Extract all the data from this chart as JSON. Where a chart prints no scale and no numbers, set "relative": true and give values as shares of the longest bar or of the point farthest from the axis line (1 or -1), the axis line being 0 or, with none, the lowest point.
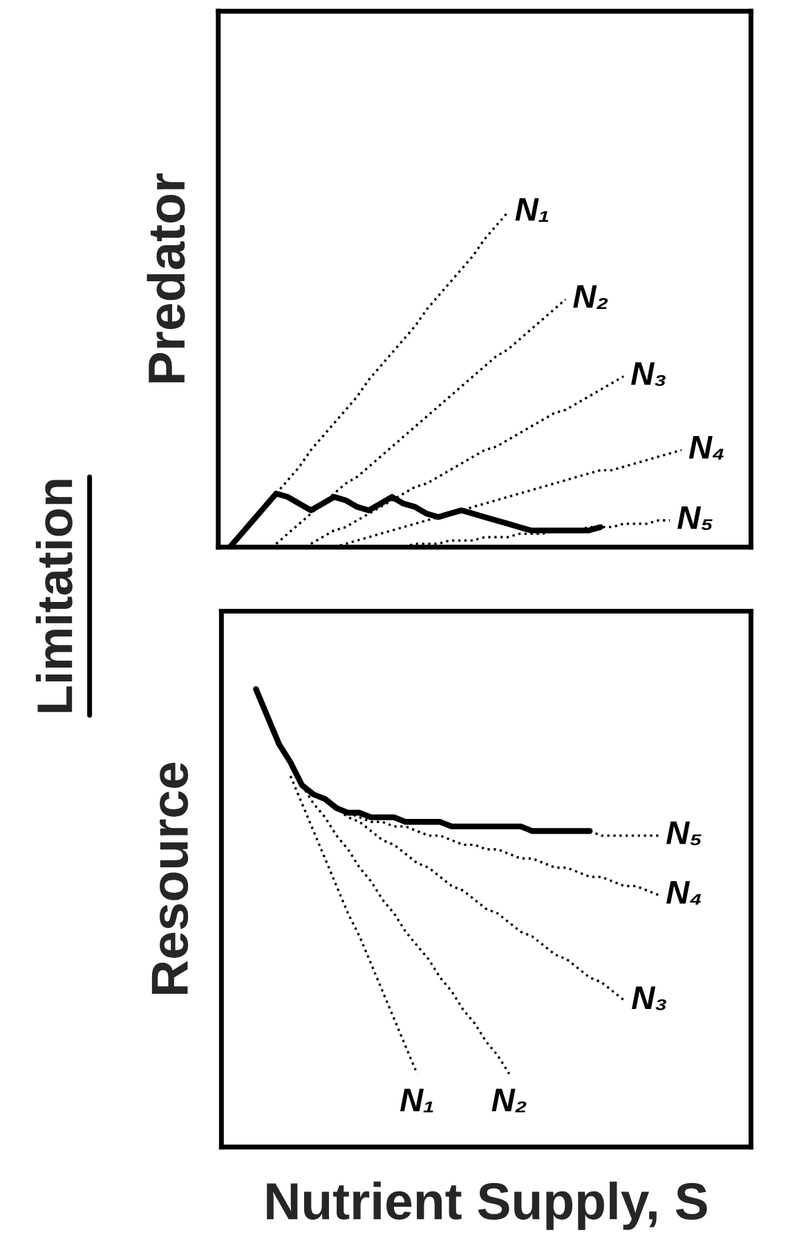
{
  "chart_data": [
    {
      "type": "line",
      "relative": true,
      "ylabel": "Predator",
      "annotations": [
        "Limitation"
      ],
      "tick_labels": false,
      "categories": [
        null,
        null,
        null,
        null,
        null,
        null,
        null,
        null,
        null,
        null,
        null,
        null,
        null,
        null,
        null,
        null,
        null,
        null,
        null,
        null,
        null,
        null,
        null,
        null,
        null,
        null,
        null,
        null,
        null,
        null,
        null,
        null,
        null,
        null,
        null,
        null,
        null,
        null,
        null,
        null,
        null
      ],
      "series": [
        {
          "color": "#000000",
          "line_style": "solid",
          "values": [
            0,
            0.04,
            0.08,
            0.12,
            0.16,
            0.15,
            0.13,
            0.11,
            0.13,
            0.15,
            0.14,
            0.12,
            0.11,
            0.13,
            0.15,
            0.13,
            0.12,
            0.1,
            0.09,
            0.1,
            0.11,
            0.1,
            0.09,
            0.08,
            0.07,
            0.06,
            0.05,
            0.05,
            0.05,
            0.05,
            0.05,
            0.05,
            0.06,
            null,
            null,
            null,
            null,
            null,
            null,
            null,
            null
          ]
        },
        {
          "name": "N₁",
          "color": "#000000",
          "line_style": "dotted",
          "values": [
            null,
            null,
            null,
            null,
            0.16,
            0.2,
            0.24,
            0.29,
            0.33,
            0.37,
            0.41,
            0.45,
            0.5,
            0.54,
            0.58,
            0.62,
            0.66,
            0.71,
            0.75,
            0.79,
            0.83,
            0.87,
            0.92,
            0.96,
            1.0,
            null,
            null,
            null,
            null,
            null,
            null,
            null,
            null,
            null,
            null,
            null,
            null,
            null,
            null,
            null,
            null
          ]
        },
        {
          "name": "N₂",
          "color": "#000000",
          "line_style": "dotted",
          "values": [
            null,
            null,
            null,
            null,
            0.01,
            0.04,
            0.07,
            0.1,
            0.13,
            0.16,
            0.19,
            0.21,
            0.24,
            0.27,
            0.3,
            0.33,
            0.36,
            0.39,
            0.42,
            0.45,
            0.48,
            0.51,
            0.54,
            0.57,
            0.59,
            0.62,
            0.65,
            0.68,
            0.71,
            0.74,
            null,
            null,
            null,
            null,
            null,
            null,
            null,
            null,
            null,
            null,
            null
          ]
        },
        {
          "name": "N₃",
          "color": "#000000",
          "line_style": "dotted",
          "values": [
            null,
            null,
            null,
            null,
            null,
            null,
            null,
            0.01,
            0.03,
            0.05,
            0.06,
            0.08,
            0.1,
            0.12,
            0.14,
            0.16,
            0.18,
            0.19,
            0.21,
            0.23,
            0.25,
            0.27,
            0.29,
            0.3,
            0.32,
            0.34,
            0.36,
            0.38,
            0.4,
            0.41,
            0.43,
            0.45,
            0.47,
            0.49,
            0.51,
            null,
            null,
            null,
            null,
            null,
            null
          ]
        },
        {
          "name": "N₄",
          "color": "#000000",
          "line_style": "dotted",
          "values": [
            null,
            null,
            null,
            null,
            null,
            null,
            null,
            null,
            null,
            0.0,
            0.01,
            0.02,
            0.03,
            0.04,
            0.05,
            0.06,
            0.07,
            0.08,
            0.09,
            0.1,
            0.11,
            0.12,
            0.13,
            0.14,
            0.15,
            0.16,
            0.17,
            0.18,
            0.19,
            0.2,
            0.21,
            0.22,
            0.23,
            0.23,
            0.24,
            0.25,
            0.26,
            0.27,
            0.28,
            0.29,
            null
          ]
        },
        {
          "name": "N₅",
          "color": "#000000",
          "line_style": "dotted",
          "values": [
            null,
            null,
            null,
            null,
            null,
            null,
            null,
            null,
            null,
            null,
            null,
            null,
            null,
            null,
            0.0,
            0.0,
            0.01,
            0.01,
            0.01,
            0.02,
            0.02,
            0.02,
            0.03,
            0.03,
            0.03,
            0.04,
            0.04,
            0.04,
            0.05,
            0.05,
            0.05,
            0.06,
            0.06,
            0.06,
            0.07,
            0.07,
            0.07,
            0.08,
            0.08,
            null,
            null
          ]
        }
      ]
    },
    {
      "type": "line",
      "relative": true,
      "ylabel": "Resource",
      "xlabel": "Nutrient Supply, S",
      "tick_labels": false,
      "categories": [
        null,
        null,
        null,
        null,
        null,
        null,
        null,
        null,
        null,
        null,
        null,
        null,
        null,
        null,
        null,
        null,
        null,
        null,
        null,
        null,
        null,
        null,
        null,
        null,
        null,
        null,
        null,
        null,
        null,
        null,
        null,
        null,
        null,
        null,
        null,
        null,
        null,
        null,
        null,
        null,
        null
      ],
      "series": [
        {
          "color": "#000000",
          "line_style": "solid",
          "values": [
            null,
            null,
            1.0,
            0.94,
            0.88,
            0.84,
            0.79,
            0.77,
            0.76,
            0.74,
            0.73,
            0.73,
            0.72,
            0.72,
            0.72,
            0.71,
            0.71,
            0.71,
            0.71,
            0.7,
            0.7,
            0.7,
            0.7,
            0.7,
            0.7,
            0.7,
            0.69,
            0.69,
            0.69,
            0.69,
            0.69,
            0.69,
            null,
            null,
            null,
            null,
            null,
            null,
            null,
            null,
            null
          ]
        },
        {
          "name": "N₁",
          "color": "#000000",
          "line_style": "dotted",
          "values": [
            null,
            null,
            null,
            null,
            null,
            0.81,
            0.75,
            0.69,
            0.63,
            0.57,
            0.51,
            0.46,
            0.4,
            0.34,
            0.28,
            0.22,
            0.16,
            null,
            null,
            null,
            null,
            null,
            null,
            null,
            null,
            null,
            null,
            null,
            null,
            null,
            null,
            null,
            null,
            null,
            null,
            null,
            null,
            null,
            null,
            null,
            null
          ]
        },
        {
          "name": "N₂",
          "color": "#000000",
          "line_style": "dotted",
          "values": [
            null,
            null,
            null,
            null,
            null,
            null,
            0.79,
            0.75,
            0.72,
            0.68,
            0.65,
            0.61,
            0.58,
            0.54,
            0.51,
            0.47,
            0.44,
            0.41,
            0.37,
            0.34,
            0.3,
            0.27,
            0.23,
            0.2,
            0.16,
            null,
            null,
            null,
            null,
            null,
            null,
            null,
            null,
            null,
            null,
            null,
            null,
            null,
            null,
            null,
            null
          ]
        },
        {
          "name": "N₃",
          "color": "#000000",
          "line_style": "dotted",
          "values": [
            null,
            null,
            null,
            null,
            null,
            null,
            null,
            null,
            0.76,
            0.74,
            0.72,
            0.71,
            0.69,
            0.67,
            0.66,
            0.64,
            0.62,
            0.61,
            0.59,
            0.57,
            0.56,
            0.54,
            0.52,
            0.51,
            0.49,
            0.47,
            0.46,
            0.44,
            0.42,
            0.41,
            0.39,
            0.37,
            0.36,
            0.34,
            0.32,
            null,
            null,
            null,
            null,
            null,
            null
          ]
        },
        {
          "name": "N₄",
          "color": "#000000",
          "line_style": "dotted",
          "values": [
            null,
            null,
            null,
            null,
            null,
            null,
            null,
            null,
            null,
            null,
            0.73,
            0.72,
            0.71,
            0.71,
            0.7,
            0.7,
            0.69,
            0.68,
            0.68,
            0.67,
            0.66,
            0.66,
            0.65,
            0.65,
            0.64,
            0.63,
            0.63,
            0.62,
            0.61,
            0.61,
            0.6,
            0.59,
            0.59,
            0.58,
            0.57,
            0.57,
            0.56,
            0.55,
            null,
            null,
            null
          ]
        },
        {
          "name": "N₅",
          "color": "#000000",
          "line_style": "dotted",
          "values": [
            null,
            null,
            null,
            null,
            null,
            null,
            null,
            null,
            null,
            null,
            null,
            null,
            null,
            null,
            null,
            null,
            null,
            null,
            null,
            null,
            null,
            null,
            null,
            null,
            null,
            null,
            null,
            null,
            null,
            null,
            null,
            0.69,
            0.68,
            0.68,
            0.68,
            0.68,
            0.68,
            0.68,
            null,
            null,
            null
          ]
        }
      ]
    }
  ]
}
